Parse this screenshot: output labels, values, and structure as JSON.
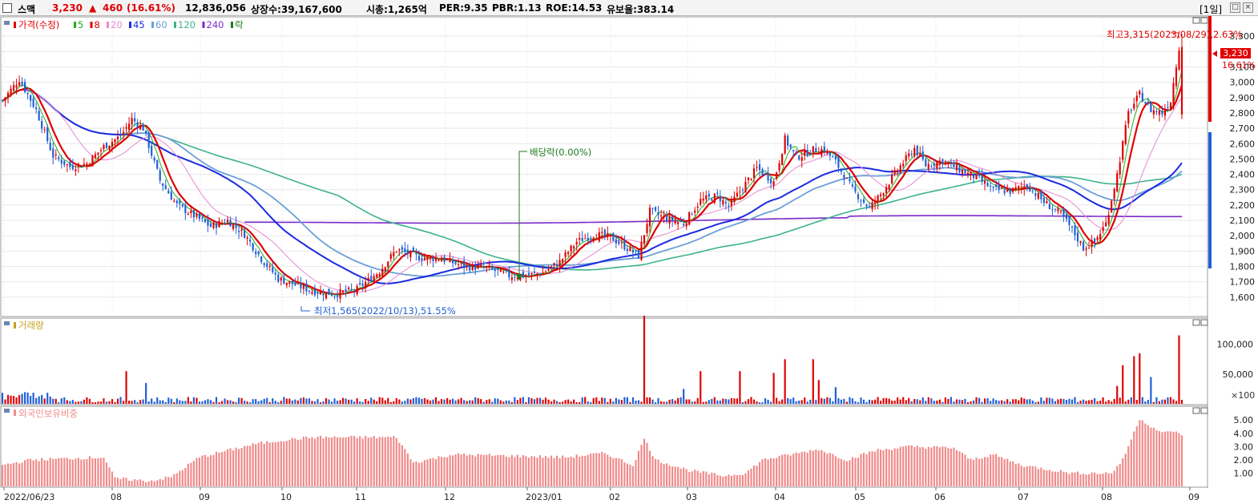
{
  "header": {
    "name": "스맥",
    "price": "3,230",
    "change_arrow": "▲",
    "change": "460",
    "change_pct": "(16.61%)",
    "volume": "12,836,056",
    "listed": "상장수:39,167,600",
    "mcap": "시총:1,265억",
    "per": "PER:9.35",
    "pbr": "PBR:1.13",
    "roe": "ROE:14.53",
    "float": "유보율:383.14",
    "period": "[1일]"
  },
  "colors": {
    "up": "#e00000",
    "down": "#1f5fd6",
    "ma5": "#22aa22",
    "ma8": "#e00000",
    "ma20": "#e58ad0",
    "ma45": "#1a2be0",
    "ma60": "#6a9fd8",
    "ma120": "#3db38a",
    "ma240": "#7a2bc9",
    "volume_bar_up": "#e00000",
    "volume_bar_down": "#1f5fd6",
    "foreign_bar": "#f08a8a"
  },
  "chart_data": [
    {
      "type": "candlestick",
      "legend": {
        "price": "가격(수정)",
        "ma": [
          {
            "label": "5",
            "color": "#22aa22"
          },
          {
            "label": "8",
            "color": "#e00000"
          },
          {
            "label": "20",
            "color": "#e58ad0"
          },
          {
            "label": "45",
            "color": "#1a2be0"
          },
          {
            "label": "60",
            "color": "#6a9fd8"
          },
          {
            "label": "120",
            "color": "#3db38a"
          },
          {
            "label": "240",
            "color": "#7a2bc9"
          }
        ],
        "extra": "락"
      },
      "ylim": [
        1500,
        3400
      ],
      "y_ticks": [
        "1,600",
        "1,700",
        "1,800",
        "1,900",
        "2,000",
        "2,100",
        "2,200",
        "2,300",
        "2,400",
        "2,500",
        "2,600",
        "2,700",
        "2,800",
        "2,900",
        "3,000",
        "3,100",
        "3,200",
        "3,300"
      ],
      "x_labels": [
        "2022/06/23",
        "08",
        "09",
        "10",
        "11",
        "12",
        "2023/01",
        "02",
        "03",
        "04",
        "05",
        "06",
        "07",
        "08",
        "09"
      ],
      "anchors": [
        [
          0,
          2880
        ],
        [
          6,
          3020
        ],
        [
          12,
          2820
        ],
        [
          18,
          2520
        ],
        [
          24,
          2450
        ],
        [
          30,
          2470
        ],
        [
          36,
          2580
        ],
        [
          42,
          2650
        ],
        [
          46,
          2760
        ],
        [
          50,
          2700
        ],
        [
          56,
          2360
        ],
        [
          62,
          2200
        ],
        [
          68,
          2130
        ],
        [
          74,
          2060
        ],
        [
          80,
          2100
        ],
        [
          86,
          2010
        ],
        [
          92,
          1850
        ],
        [
          98,
          1720
        ],
        [
          104,
          1680
        ],
        [
          110,
          1640
        ],
        [
          118,
          1620
        ],
        [
          126,
          1650
        ],
        [
          134,
          1770
        ],
        [
          140,
          1910
        ],
        [
          148,
          1860
        ],
        [
          156,
          1850
        ],
        [
          164,
          1800
        ],
        [
          172,
          1790
        ],
        [
          180,
          1740
        ],
        [
          186,
          1740
        ],
        [
          192,
          1760
        ],
        [
          198,
          1830
        ],
        [
          204,
          1960
        ],
        [
          210,
          2010
        ],
        [
          216,
          1990
        ],
        [
          222,
          1920
        ],
        [
          226,
          1870
        ],
        [
          230,
          2160
        ],
        [
          236,
          2110
        ],
        [
          242,
          2080
        ],
        [
          248,
          2230
        ],
        [
          254,
          2260
        ],
        [
          258,
          2190
        ],
        [
          262,
          2290
        ],
        [
          268,
          2440
        ],
        [
          274,
          2350
        ],
        [
          278,
          2630
        ],
        [
          282,
          2510
        ],
        [
          288,
          2560
        ],
        [
          292,
          2560
        ],
        [
          296,
          2480
        ],
        [
          302,
          2300
        ],
        [
          308,
          2180
        ],
        [
          312,
          2270
        ],
        [
          318,
          2430
        ],
        [
          324,
          2570
        ],
        [
          328,
          2460
        ],
        [
          334,
          2490
        ],
        [
          340,
          2430
        ],
        [
          346,
          2380
        ],
        [
          352,
          2300
        ],
        [
          358,
          2290
        ],
        [
          364,
          2330
        ],
        [
          370,
          2220
        ],
        [
          376,
          2140
        ],
        [
          380,
          2040
        ],
        [
          384,
          1920
        ],
        [
          388,
          1960
        ],
        [
          392,
          2080
        ],
        [
          396,
          2400
        ],
        [
          400,
          2800
        ],
        [
          404,
          2920
        ],
        [
          408,
          2820
        ],
        [
          412,
          2800
        ],
        [
          415,
          2880
        ],
        [
          418,
          3230
        ]
      ],
      "last_close": 3230,
      "annotations": {
        "high": "최고3,315(2023/08/29),2.63%",
        "low": "최저1,565(2022/10/13),51.55%",
        "dividend": "배당락(0.00%)",
        "price_tag": "3,230",
        "pct_tag": "16.61%"
      }
    },
    {
      "type": "bar",
      "title": "거래량",
      "ylim": [
        0,
        140000
      ],
      "y_ticks": [
        "100,000",
        "50,000"
      ],
      "unit_label": "×100",
      "spikes": [
        [
          44,
          55000
        ],
        [
          51,
          35000
        ],
        [
          228,
          148000
        ],
        [
          242,
          25000
        ],
        [
          248,
          55000
        ],
        [
          262,
          55000
        ],
        [
          274,
          52000
        ],
        [
          278,
          75000
        ],
        [
          288,
          75000
        ],
        [
          290,
          40000
        ],
        [
          296,
          28000
        ],
        [
          396,
          30000
        ],
        [
          398,
          65000
        ],
        [
          402,
          80000
        ],
        [
          404,
          85000
        ],
        [
          408,
          45000
        ],
        [
          418,
          115000
        ]
      ]
    },
    {
      "type": "bar",
      "title": "외국인보유비중",
      "ylim": [
        0,
        5.8
      ],
      "y_ticks": [
        "1.00",
        "2.00",
        "3.00",
        "4.00",
        "5.00"
      ]
    }
  ]
}
